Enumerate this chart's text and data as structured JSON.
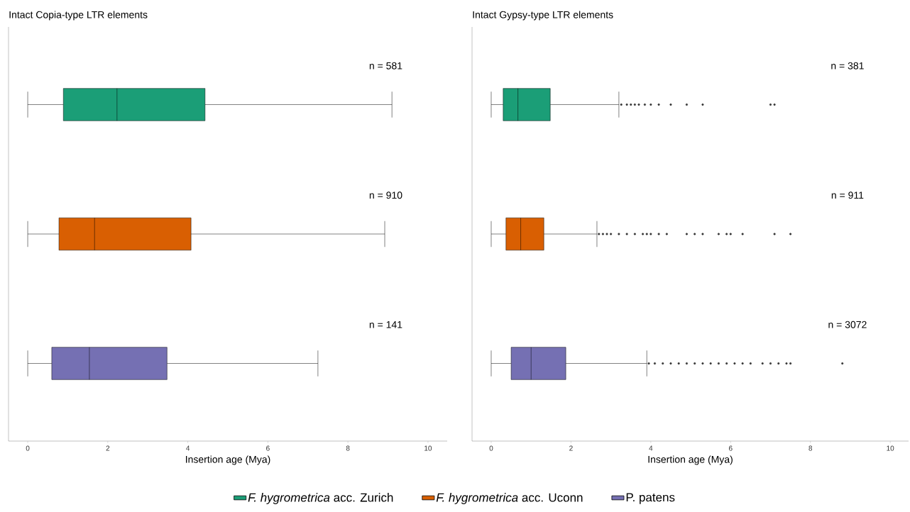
{
  "chart_data": [
    {
      "type": "box",
      "title": "Intact Copia-type LTR elements",
      "xlabel": "Insertion age (Mya)",
      "orientation": "horizontal",
      "categories": [
        null,
        null,
        null
      ],
      "xlim": [
        -0.48,
        10.48
      ],
      "xticks": [
        0,
        2,
        4,
        6,
        8,
        10
      ],
      "tick_labels": "x",
      "legend": "bottom",
      "series": [
        {
          "name": "*F. hygrometrica* acc. Zurich",
          "color": "#1b9e77",
          "boxes": [
            {
              "low": 0,
              "q1": 0.89,
              "median": 2.23,
              "q3": 4.43,
              "high": 9.1
            },
            null,
            null
          ]
        },
        {
          "name": "*F. hygrometrica* acc. Uconn",
          "color": "#d95f02",
          "boxes": [
            null,
            {
              "low": 0,
              "q1": 0.78,
              "median": 1.67,
              "q3": 4.08,
              "high": 8.92
            },
            null
          ]
        },
        {
          "name": "P. patens",
          "color": "#7570b3",
          "boxes": [
            null,
            null,
            {
              "low": 0,
              "q1": 0.6,
              "median": 1.54,
              "q3": 3.48,
              "high": 7.25
            }
          ]
        }
      ],
      "annotations": [
        "n = 581",
        "n = 910",
        "n = 141"
      ]
    },
    {
      "type": "box",
      "title": "Intact Gypsy-type LTR elements",
      "xlabel": "Insertion age (Mya)",
      "orientation": "horizontal",
      "categories": [
        null,
        null,
        null
      ],
      "xlim": [
        -0.48,
        10.46
      ],
      "xticks": [
        0,
        2,
        4,
        6,
        8,
        10
      ],
      "tick_labels": "x",
      "series": [
        {
          "color": "#1b9e77",
          "boxes": [
            {
              "low": 0,
              "q1": 0.3,
              "median": 0.67,
              "q3": 1.48,
              "high": 3.2,
              "outliers": [
                3.26,
                3.4,
                3.5,
                3.6,
                3.7,
                3.85,
                4.0,
                4.2,
                4.5,
                4.9,
                5.3,
                7.0,
                7.1
              ]
            },
            null,
            null
          ]
        },
        {
          "color": "#d95f02",
          "boxes": [
            null,
            {
              "low": 0,
              "q1": 0.37,
              "median": 0.74,
              "q3": 1.32,
              "high": 2.65,
              "outliers": [
                2.7,
                2.8,
                2.9,
                3.0,
                3.2,
                3.4,
                3.6,
                3.8,
                3.9,
                4.0,
                4.2,
                4.4,
                4.9,
                5.1,
                5.3,
                5.7,
                5.9,
                6.0,
                6.3,
                7.1,
                7.5
              ]
            },
            null
          ]
        },
        {
          "color": "#7570b3",
          "boxes": [
            null,
            null,
            {
              "low": 0,
              "q1": 0.5,
              "median": 1.0,
              "q3": 1.87,
              "high": 3.9,
              "outliers": [
                3.95,
                4.1,
                4.3,
                4.5,
                4.7,
                4.9,
                5.1,
                5.3,
                5.5,
                5.7,
                5.9,
                6.1,
                6.3,
                6.5,
                6.8,
                7.0,
                7.2,
                7.4,
                7.5,
                8.8
              ]
            }
          ]
        }
      ],
      "annotations": [
        "n = 381",
        "n = 911",
        "n = 3072"
      ]
    }
  ]
}
